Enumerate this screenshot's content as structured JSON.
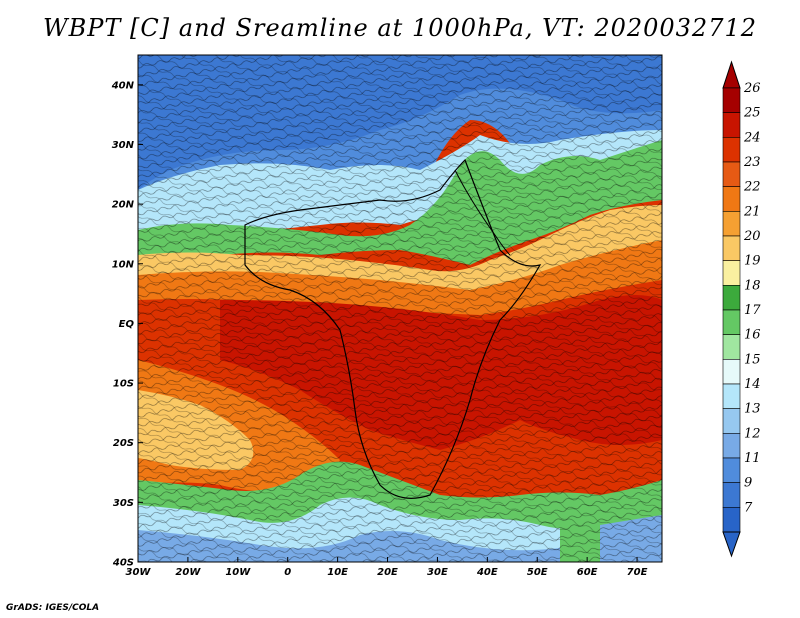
{
  "title": "WBPT [C] and Sreamline at 1000hPa, VT: 2020032712",
  "credit": "GrADS: IGES/COLA",
  "map": {
    "lat_labels": [
      "40N",
      "30N",
      "20N",
      "10N",
      "EQ",
      "10S",
      "20S",
      "30S",
      "40S"
    ],
    "lon_labels": [
      "30W",
      "20W",
      "10W",
      "0",
      "10E",
      "20E",
      "30E",
      "40E",
      "50E",
      "60E",
      "70E"
    ],
    "lon_range": [
      -30,
      75
    ],
    "lat_range": [
      -40,
      45
    ]
  },
  "colorbar": {
    "labels": [
      "26",
      "25",
      "24",
      "23",
      "22",
      "21",
      "20",
      "19",
      "18",
      "17",
      "16",
      "15",
      "14",
      "13",
      "12",
      "11",
      "9",
      "7"
    ],
    "colors": [
      "#a50000",
      "#c81400",
      "#dc3200",
      "#e65a14",
      "#f07814",
      "#f5a032",
      "#fac864",
      "#faf0a0",
      "#3caa3c",
      "#64c864",
      "#a0e6a0",
      "#e6fafa",
      "#b4e6fa",
      "#96c8f0",
      "#78aae6",
      "#508cdc",
      "#3c78d2",
      "#2864c8"
    ]
  },
  "field": {
    "description_free": true,
    "levels": [
      7,
      9,
      11,
      12,
      13,
      14,
      15,
      16,
      17,
      18,
      19,
      20,
      21,
      22,
      23,
      24,
      25,
      26
    ]
  }
}
